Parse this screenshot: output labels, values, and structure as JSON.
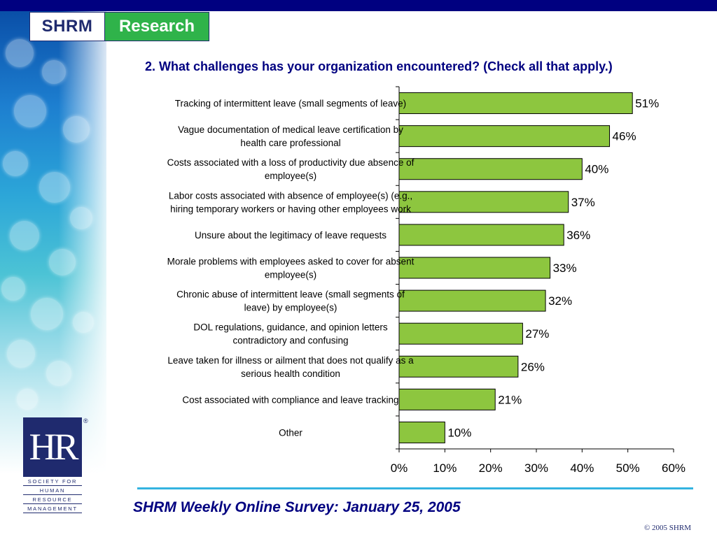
{
  "header": {
    "logo_left": "SHRM",
    "logo_right": "Research"
  },
  "question": "2. What challenges has your organization encountered? (Check all that apply.)",
  "footer": {
    "title": "SHRM Weekly Online Survey: January 25, 2005",
    "copyright": "© 2005 SHRM"
  },
  "hr_logo": {
    "mark": "HR",
    "registered": "®",
    "words": [
      "SOCIETY FOR",
      "HUMAN",
      "RESOURCE",
      "MANAGEMENT"
    ]
  },
  "colors": {
    "bar_fill": "#8dc63f",
    "navy": "#000080",
    "accent_rule": "#33b3e0"
  },
  "chart_data": {
    "type": "bar",
    "orientation": "horizontal",
    "categories": [
      [
        "Tracking of intermittent leave (small segments of leave)"
      ],
      [
        "Vague documentation of medical leave certification by",
        "health care professional"
      ],
      [
        "Costs associated with a loss of productivity due absence of",
        "employee(s)"
      ],
      [
        "Labor costs associated with absence of employee(s) (e.g.,",
        "hiring temporary workers or having other employees work"
      ],
      [
        "Unsure about the legitimacy of leave requests"
      ],
      [
        "Morale problems with employees asked to cover for absent",
        "employee(s)"
      ],
      [
        "Chronic abuse of intermittent leave (small segments of",
        "leave) by employee(s)"
      ],
      [
        "DOL regulations, guidance, and opinion letters",
        "contradictory and confusing"
      ],
      [
        "Leave taken for illness or ailment that does not qualify as a",
        "serious health condition"
      ],
      [
        "Cost associated with compliance and leave tracking"
      ],
      [
        "Other"
      ]
    ],
    "values": [
      51,
      46,
      40,
      37,
      36,
      33,
      32,
      27,
      26,
      21,
      10
    ],
    "value_labels": [
      "51%",
      "46%",
      "40%",
      "37%",
      "36%",
      "33%",
      "32%",
      "27%",
      "26%",
      "21%",
      "10%"
    ],
    "xlim": [
      0,
      60
    ],
    "ticks": [
      "0%",
      "10%",
      "20%",
      "30%",
      "40%",
      "50%",
      "60%"
    ],
    "grid": false,
    "legend": "none"
  }
}
